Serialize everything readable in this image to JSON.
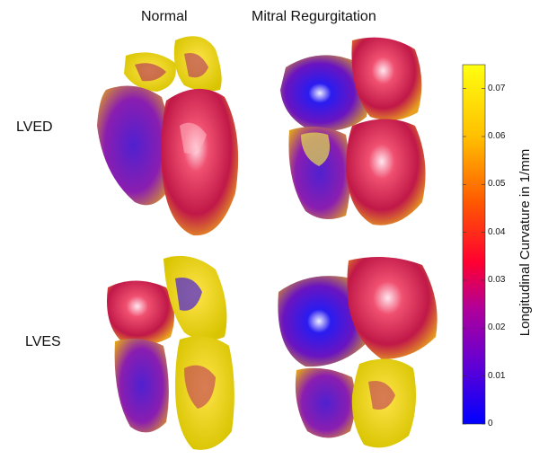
{
  "columns": [
    "Normal",
    "Mitral Regurgitation"
  ],
  "rows": [
    "LVED",
    "LVES"
  ],
  "colorbar": {
    "label": "Longitudinal Curvature in 1/mm",
    "ticks": [
      "0",
      "0.01",
      "0.02",
      "0.03",
      "0.04",
      "0.05",
      "0.06",
      "0.07"
    ],
    "range": [
      0,
      0.075
    ],
    "colors": [
      "#0000ff",
      "#7a00c8",
      "#c8007a",
      "#ff0000",
      "#ff7a00",
      "#ffd200",
      "#ffff00"
    ]
  },
  "chart_data": {
    "type": "heatmap",
    "title": "",
    "columns": [
      "Normal",
      "Mitral Regurgitation"
    ],
    "rows": [
      "LVED",
      "LVES"
    ],
    "colorbar_label": "Longitudinal Curvature in 1/mm",
    "colorbar_range": [
      0,
      0.075
    ],
    "colorbar_ticks": [
      0,
      0.01,
      0.02,
      0.03,
      0.04,
      0.05,
      0.06,
      0.07
    ]
  }
}
